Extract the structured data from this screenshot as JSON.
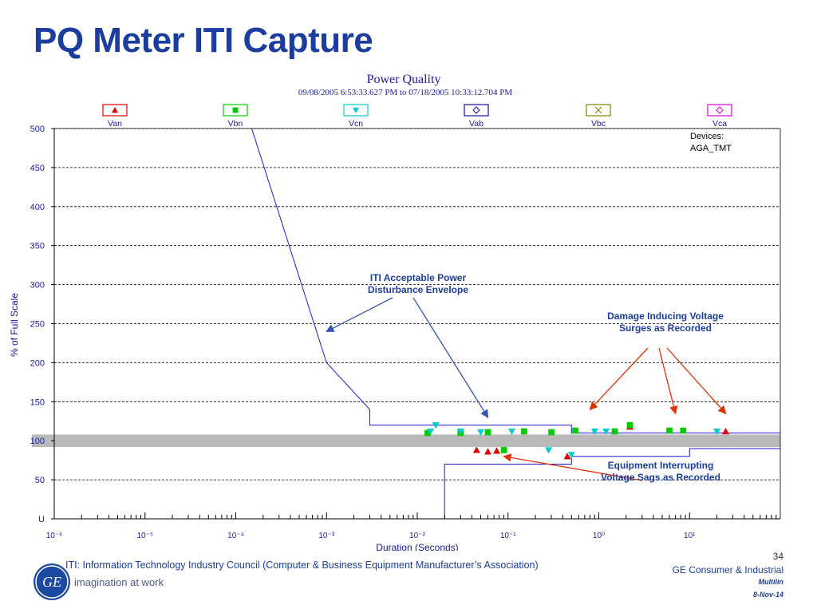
{
  "slide": {
    "title": "PQ Meter ITI Capture",
    "footnote": "ITI: Information Technology Industry Council (Computer & Business Equipment Manufacturer’s Association)",
    "logo_tagline": "imagination at work",
    "page_number": "34",
    "company": "GE Consumer & Industrial",
    "division": "Multilin",
    "date": "8-Nov-14"
  },
  "chart_data": {
    "type": "scatter",
    "title": "Power Quality",
    "subtitle": "09/08/2005 6:53:33.627 PM to 07/18/2005 10:33:12.704 PM",
    "xlabel": "Duration (Seconds)",
    "ylabel": "% of Full Scale",
    "x_scale": "log",
    "x_ticks": [
      "10⁻⁶",
      "10⁻⁵",
      "10⁻⁴",
      "10⁻³",
      "10⁻²",
      "10⁻¹",
      "10⁰",
      "10¹"
    ],
    "y_ticks": [
      0,
      50,
      100,
      150,
      200,
      250,
      300,
      350,
      400,
      450,
      500
    ],
    "ylim": [
      0,
      500
    ],
    "grid": "horizontal-dashed",
    "devices_label": "Devices:",
    "device_name": "AGA_TMT",
    "nominal_band": [
      92,
      108
    ],
    "legend": [
      {
        "name": "Van",
        "color": "#e00000",
        "symbol": "triangle-up"
      },
      {
        "name": "Vbn",
        "color": "#00cc00",
        "symbol": "square"
      },
      {
        "name": "Vcn",
        "color": "#00cccc",
        "symbol": "triangle-down"
      },
      {
        "name": "Vab",
        "color": "#1010a0",
        "symbol": "diamond"
      },
      {
        "name": "Vbc",
        "color": "#808000",
        "symbol": "x"
      },
      {
        "name": "Vca",
        "color": "#e000e0",
        "symbol": "diamond"
      }
    ],
    "envelope_upper": [
      {
        "x": 0.00015,
        "y": 500
      },
      {
        "x": 0.001,
        "y": 200
      },
      {
        "x": 0.003,
        "y": 140
      },
      {
        "x": 0.003,
        "y": 120
      },
      {
        "x": 0.5,
        "y": 120
      },
      {
        "x": 0.5,
        "y": 110
      },
      {
        "x": 10,
        "y": 110
      }
    ],
    "envelope_lower": [
      {
        "x": 0.02,
        "y": 0
      },
      {
        "x": 0.02,
        "y": 70
      },
      {
        "x": 0.5,
        "y": 70
      },
      {
        "x": 0.5,
        "y": 80
      },
      {
        "x": 10,
        "y": 80
      },
      {
        "x": 10,
        "y": 90
      }
    ],
    "series": [
      {
        "name": "Van",
        "points": [
          {
            "x": 0.045,
            "y": 88
          },
          {
            "x": 0.06,
            "y": 86
          },
          {
            "x": 0.075,
            "y": 87
          },
          {
            "x": 0.45,
            "y": 80
          },
          {
            "x": 2.2,
            "y": 118
          },
          {
            "x": 25,
            "y": 112
          }
        ]
      },
      {
        "name": "Vbn",
        "points": [
          {
            "x": 0.013,
            "y": 110
          },
          {
            "x": 0.03,
            "y": 110
          },
          {
            "x": 0.06,
            "y": 111
          },
          {
            "x": 0.09,
            "y": 88
          },
          {
            "x": 0.15,
            "y": 112
          },
          {
            "x": 0.3,
            "y": 111
          },
          {
            "x": 0.55,
            "y": 113
          },
          {
            "x": 1.5,
            "y": 112
          },
          {
            "x": 2.2,
            "y": 120
          },
          {
            "x": 6,
            "y": 113
          },
          {
            "x": 8.5,
            "y": 113
          }
        ]
      },
      {
        "name": "Vcn",
        "points": [
          {
            "x": 0.014,
            "y": 112
          },
          {
            "x": 0.016,
            "y": 120
          },
          {
            "x": 0.03,
            "y": 112
          },
          {
            "x": 0.05,
            "y": 111
          },
          {
            "x": 0.11,
            "y": 112
          },
          {
            "x": 0.28,
            "y": 88
          },
          {
            "x": 0.5,
            "y": 82
          },
          {
            "x": 0.9,
            "y": 112
          },
          {
            "x": 1.2,
            "y": 112
          },
          {
            "x": 20,
            "y": 112
          }
        ]
      }
    ],
    "annotations": [
      {
        "text_lines": [
          "ITI Acceptable Power",
          "Disturbance Envelope"
        ],
        "color": "#1a3d9e",
        "arrow_color": "#3355bb",
        "anchor": "upper-mid",
        "targets": [
          {
            "x": 0.001,
            "y": 240
          },
          {
            "x": 0.06,
            "y": 130
          }
        ]
      },
      {
        "text_lines": [
          "Damage Inducing Voltage",
          "Surges as Recorded"
        ],
        "color": "#1a3d9e",
        "arrow_color": "#dd3300",
        "anchor": "right",
        "targets": [
          {
            "x": 0.8,
            "y": 140
          },
          {
            "x": 7,
            "y": 135
          },
          {
            "x": 25,
            "y": 135
          }
        ]
      },
      {
        "text_lines": [
          "Equipment Interrupting",
          "Voltage Sags as Recorded"
        ],
        "color": "#1a3d9e",
        "arrow_color": "#dd3300",
        "anchor": "lower-right",
        "targets": [
          {
            "x": 0.09,
            "y": 80
          }
        ]
      }
    ]
  }
}
